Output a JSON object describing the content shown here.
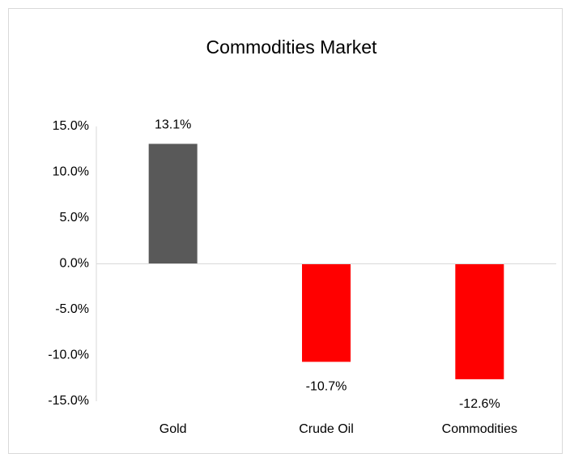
{
  "chart_data": {
    "type": "bar",
    "title": "Commodities Market",
    "categories": [
      "Gold",
      "Crude Oil",
      "Commodities"
    ],
    "values": [
      13.1,
      -10.7,
      -12.6
    ],
    "value_labels": [
      "13.1%",
      "-10.7%",
      "-12.6%"
    ],
    "colors": [
      "#595959",
      "#ff0000",
      "#ff0000"
    ],
    "ylim": [
      -15,
      15
    ],
    "yticks": [
      {
        "value": -15,
        "label": "-15.0%"
      },
      {
        "value": -10,
        "label": "-10.0%"
      },
      {
        "value": -5,
        "label": "-5.0%"
      },
      {
        "value": 0,
        "label": "0.0%"
      },
      {
        "value": 5,
        "label": "5.0%"
      },
      {
        "value": 10,
        "label": "10.0%"
      },
      {
        "value": 15,
        "label": "15.0%"
      }
    ],
    "grid": false
  }
}
